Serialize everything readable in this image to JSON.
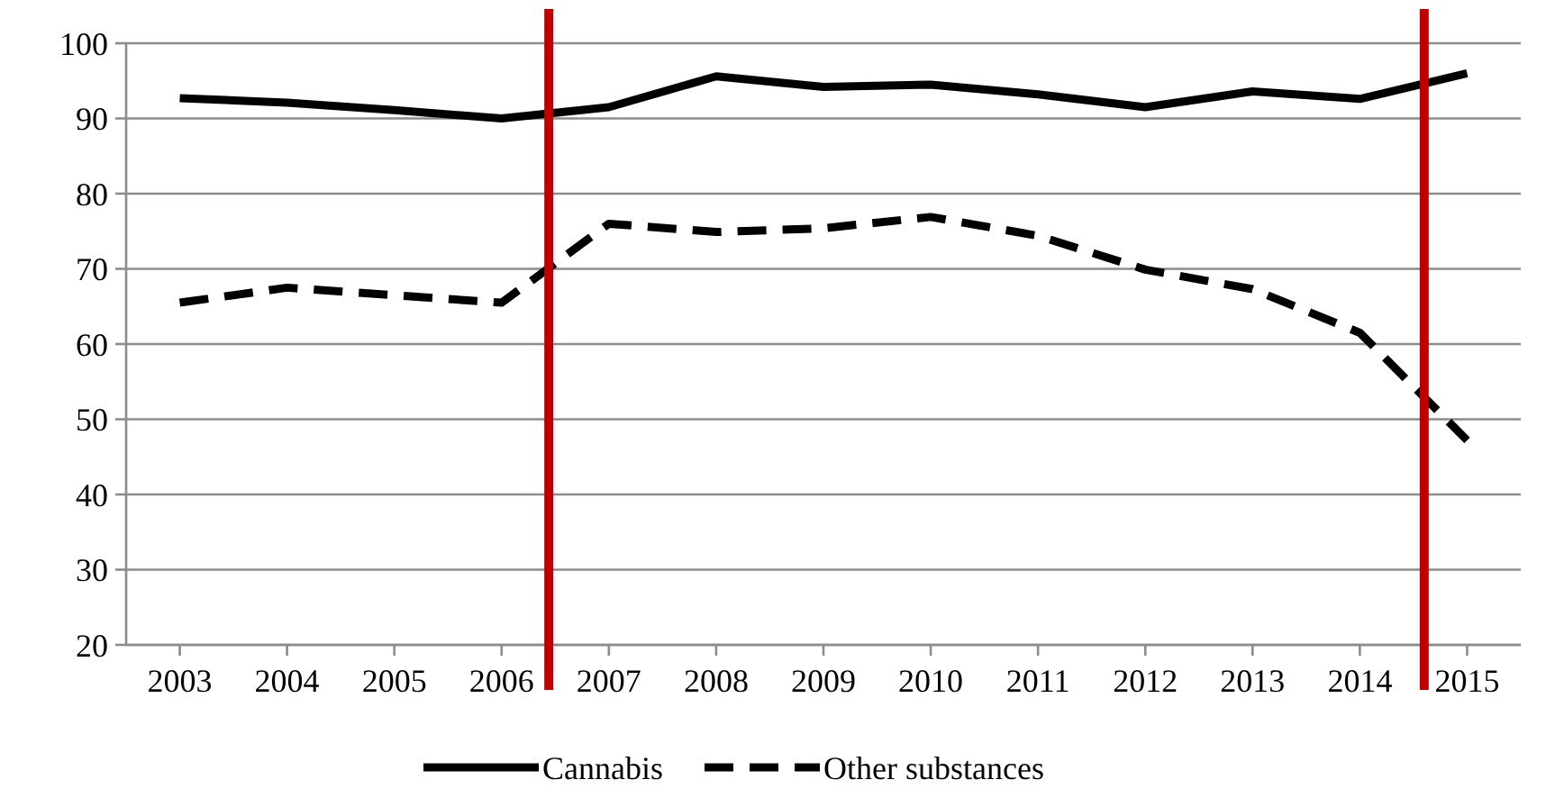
{
  "chart_data": {
    "type": "line",
    "x": [
      2003,
      2004,
      2005,
      2006,
      2007,
      2008,
      2009,
      2010,
      2011,
      2012,
      2013,
      2014,
      2015
    ],
    "series": [
      {
        "name": "Cannabis",
        "color": "#000000",
        "line_style": "solid",
        "values": [
          92.7,
          92.1,
          91.1,
          90.0,
          91.5,
          95.6,
          94.2,
          94.5,
          93.2,
          91.5,
          93.6,
          92.6,
          96.0
        ]
      },
      {
        "name": "Other substances",
        "color": "#000000",
        "line_style": "dashed",
        "values": [
          65.5,
          67.5,
          66.5,
          65.5,
          76.0,
          74.9,
          75.4,
          76.9,
          74.4,
          69.9,
          67.3,
          61.5,
          47.2
        ]
      }
    ],
    "xlim": [
      2002.5,
      2015.5
    ],
    "xticks": [
      2003,
      2004,
      2005,
      2006,
      2007,
      2008,
      2009,
      2010,
      2011,
      2012,
      2013,
      2014,
      2015
    ],
    "ylim": [
      20,
      100
    ],
    "yticks": [
      20,
      30,
      40,
      50,
      60,
      70,
      80,
      90,
      100
    ],
    "grid": "y",
    "legend": "bottom",
    "marker": "none",
    "ref_lines": [
      {
        "axis": "x",
        "value": 2006.44,
        "color": "#c00000"
      },
      {
        "axis": "x",
        "value": 2014.6,
        "color": "#c00000"
      }
    ]
  }
}
